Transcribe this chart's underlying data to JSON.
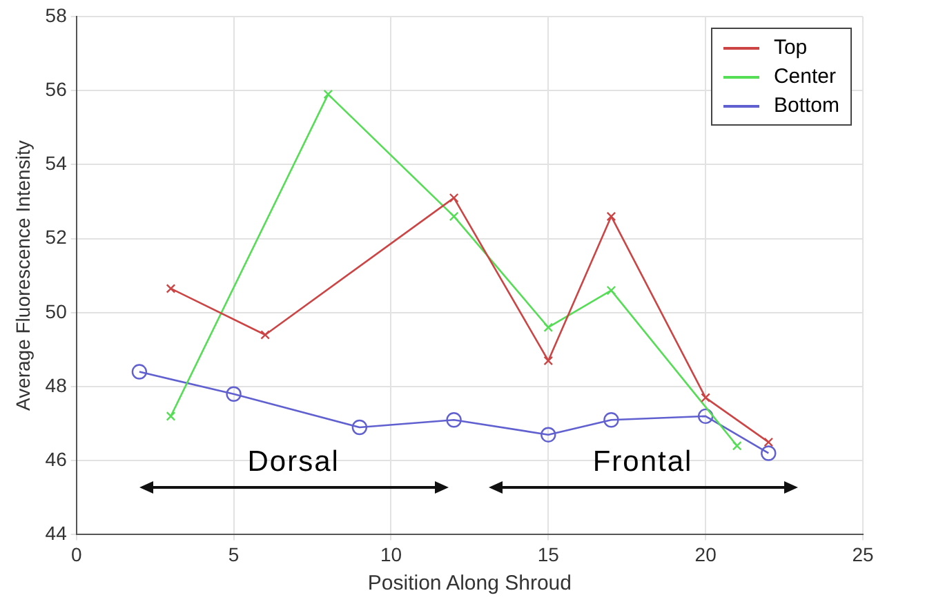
{
  "chart_data": {
    "type": "line",
    "xlabel": "Position Along Shroud",
    "ylabel": "Average Fluorescence Intensity",
    "xlim": [
      0,
      25
    ],
    "xticks": [
      0,
      5,
      10,
      15,
      20,
      25
    ],
    "ylim": [
      44,
      58
    ],
    "yticks": [
      44,
      46,
      48,
      50,
      52,
      54,
      56,
      58
    ],
    "grid": true,
    "legend": "top right",
    "line_style": "solid",
    "series": [
      {
        "name": "Top",
        "color": "#cc4444",
        "marker": "cross",
        "x": [
          3,
          6,
          12,
          15,
          17,
          20,
          22
        ],
        "values": [
          50.65,
          49.4,
          53.1,
          48.7,
          52.6,
          47.7,
          46.5
        ]
      },
      {
        "name": "Center",
        "color": "#55dd55",
        "marker": "cross",
        "x": [
          3,
          8,
          12,
          15,
          17,
          21
        ],
        "values": [
          47.2,
          55.9,
          52.6,
          49.6,
          50.6,
          46.4
        ]
      },
      {
        "name": "Bottom",
        "color": "#6060d0",
        "marker": "circle",
        "x": [
          2,
          5,
          9,
          12,
          15,
          17,
          20,
          22
        ],
        "values": [
          48.4,
          47.8,
          46.9,
          47.1,
          46.7,
          47.1,
          47.2,
          46.2
        ]
      }
    ],
    "annotations": [
      "Dorsal",
      "Frontal"
    ]
  }
}
